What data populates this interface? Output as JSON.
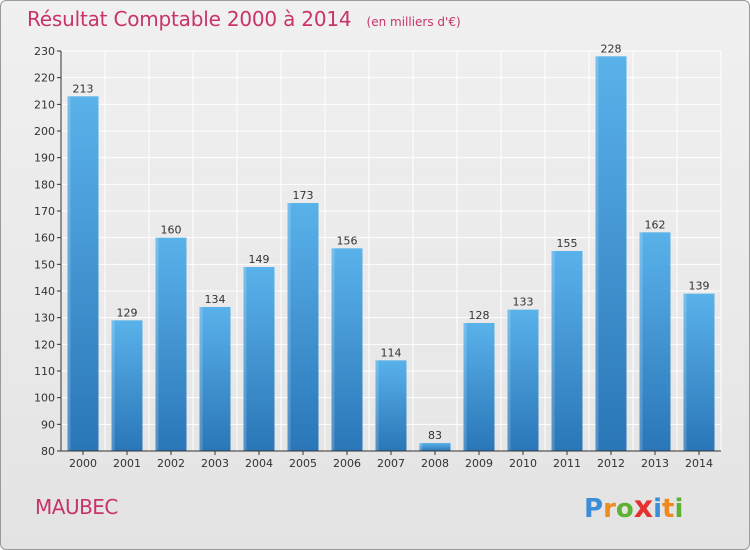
{
  "header": {
    "title": "Résultat Comptable 2000 à 2014",
    "subtitle": "(en milliers d'€)"
  },
  "footer": {
    "commune": "MAUBEC",
    "brand_letters": [
      "P",
      "r",
      "o",
      "x",
      "i",
      "t",
      "i"
    ],
    "brand_colors": [
      "#3d8ed8",
      "#ef8a1e",
      "#5db234",
      "#e5322d",
      "#3d8ed8",
      "#ef8a1e",
      "#5db234"
    ]
  },
  "colors": {
    "bar_light": "#5ab2ea",
    "bar_dark": "#2a76b8",
    "grid": "#ffffff",
    "axis": "#333333",
    "accent": "#c8336b"
  },
  "chart_data": {
    "type": "bar",
    "title": "Résultat Comptable 2000 à 2014",
    "subtitle": "(en milliers d'€)",
    "categories": [
      "2000",
      "2001",
      "2002",
      "2003",
      "2004",
      "2005",
      "2006",
      "2007",
      "2008",
      "2009",
      "2010",
      "2011",
      "2012",
      "2013",
      "2014"
    ],
    "values": [
      213,
      129,
      160,
      134,
      149,
      173,
      156,
      114,
      83,
      128,
      133,
      155,
      228,
      162,
      139
    ],
    "ylim": [
      80,
      230
    ],
    "yticks": [
      80,
      90,
      100,
      110,
      120,
      130,
      140,
      150,
      160,
      170,
      180,
      190,
      200,
      210,
      220,
      230
    ],
    "grid": true,
    "xlabel": "",
    "ylabel": ""
  }
}
